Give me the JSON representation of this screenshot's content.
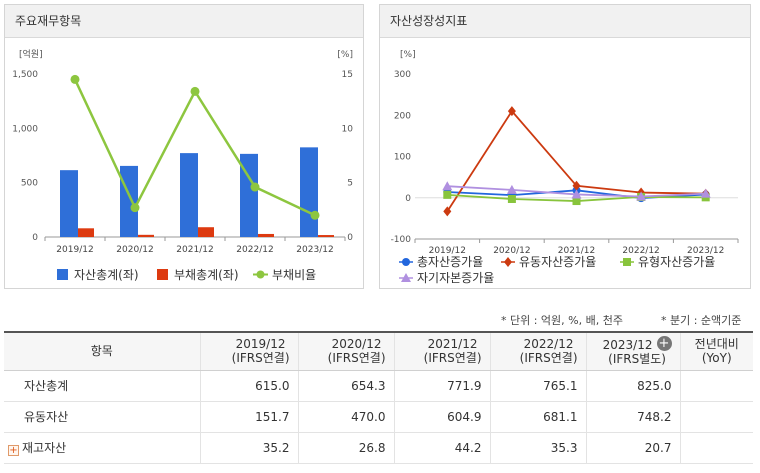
{
  "left_panel": {
    "title": "주요재무항목"
  },
  "right_panel": {
    "title": "자산성장성지표"
  },
  "chart_data": [
    {
      "type": "bar",
      "categories": [
        "2019/12",
        "2020/12",
        "2021/12",
        "2022/12",
        "2023/12"
      ],
      "left_unit": "[억원]",
      "right_unit": "[%]",
      "ylim": [
        0,
        1500
      ],
      "y_ticks": [
        0,
        500,
        "1,000",
        "1,500"
      ],
      "y2lim": [
        0,
        15
      ],
      "y2_ticks": [
        0,
        5,
        10,
        15
      ],
      "series": [
        {
          "name": "자산총계(좌)",
          "type": "bar",
          "axis": "left",
          "color": "#2f6fd8",
          "values": [
            615.0,
            654.3,
            771.9,
            765.1,
            825.0
          ]
        },
        {
          "name": "부채총계(좌)",
          "type": "bar",
          "axis": "left",
          "color": "#dd3a10",
          "values": [
            80,
            20,
            90,
            28,
            18
          ]
        },
        {
          "name": "부채비율",
          "type": "line",
          "axis": "right",
          "color": "#8dc63f",
          "values": [
            14.5,
            2.7,
            13.4,
            4.6,
            2.0
          ]
        }
      ],
      "legend": "bottom"
    },
    {
      "type": "line",
      "categories": [
        "2019/12",
        "2020/12",
        "2021/12",
        "2022/12",
        "2023/12"
      ],
      "unit": "[%]",
      "ylim": [
        -100,
        300
      ],
      "y_ticks": [
        -100,
        0,
        100,
        200,
        300
      ],
      "series": [
        {
          "name": "총자산증가율",
          "color": "#2266dd",
          "marker": "circle",
          "values": [
            14,
            6.4,
            18.0,
            -0.9,
            7.8
          ]
        },
        {
          "name": "유동자산증가율",
          "color": "#cc3a10",
          "marker": "diamond",
          "values": [
            -33,
            210,
            29,
            12.6,
            9.8
          ]
        },
        {
          "name": "유형자산증가율",
          "color": "#88c43c",
          "marker": "square",
          "values": [
            7,
            -3,
            -8,
            2,
            1
          ]
        },
        {
          "name": "자기자본증가율",
          "color": "#b090e0",
          "marker": "triangle",
          "values": [
            28,
            19,
            8,
            3,
            10
          ]
        }
      ],
      "legend": "bottom"
    }
  ],
  "notes": {
    "unit": "* 단위 : 억원, %, 배, 천주",
    "period": "* 분기 : 순액기준"
  },
  "table": {
    "header": {
      "item": "항목",
      "yoy_line1": "전년대비",
      "yoy_line2": "(YoY)"
    },
    "columns": [
      {
        "year": "2019/12",
        "basis": "(IFRS연결)"
      },
      {
        "year": "2020/12",
        "basis": "(IFRS연결)"
      },
      {
        "year": "2021/12",
        "basis": "(IFRS연결)"
      },
      {
        "year": "2022/12",
        "basis": "(IFRS연결)"
      },
      {
        "year": "2023/12",
        "basis": "(IFRS별도)"
      }
    ],
    "rows": [
      {
        "label": "자산총계",
        "values": [
          "615.0",
          "654.3",
          "771.9",
          "765.1",
          "825.0"
        ],
        "yoy": "",
        "expandable": false
      },
      {
        "label": "유동자산",
        "values": [
          "151.7",
          "470.0",
          "604.9",
          "681.1",
          "748.2"
        ],
        "yoy": "",
        "expandable": false
      },
      {
        "label": "재고자산",
        "values": [
          "35.2",
          "26.8",
          "44.2",
          "35.3",
          "20.7"
        ],
        "yoy": "",
        "expandable": true
      }
    ]
  }
}
